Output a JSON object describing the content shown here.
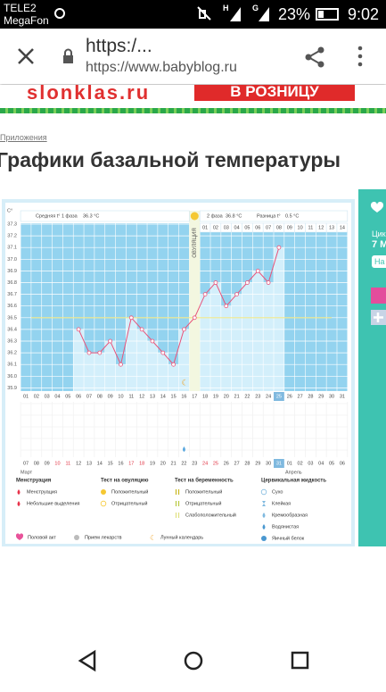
{
  "status_bar": {
    "carrier1": "TELE2",
    "carrier2": "MegaFon",
    "net1": "H",
    "net2": "G",
    "battery": "23%",
    "time": "9:02"
  },
  "browser": {
    "title": "https:/...",
    "url": "https://www.babyblog.ru"
  },
  "banner": {
    "left": "slonklas.ru",
    "right": "В РОЗНИЦУ"
  },
  "breadcrumb": "Приложения",
  "heading": "Графики базальной температуры",
  "side": {
    "cycle": "Цик",
    "date": "7 М",
    "button": "На"
  },
  "chart_data": {
    "type": "line",
    "unit_label": "С°",
    "phase1_label": "Средняя t° 1 фаза",
    "phase1_value": "36.3 °С",
    "phase2_label": "2 фаза",
    "phase2_value": "36.8 °С",
    "diff_label": "Разница t°",
    "diff_value": "0.5 °С",
    "ovulation_label": "ОВУЛЯЦИЯ",
    "categories": [
      "01",
      "02",
      "03",
      "04",
      "05",
      "06",
      "07",
      "08",
      "09",
      "10",
      "11",
      "12",
      "13",
      "14",
      "15",
      "16",
      "17",
      "18",
      "19",
      "20",
      "21",
      "22",
      "23",
      "24",
      "25",
      "26",
      "27",
      "28",
      "29",
      "30",
      "31"
    ],
    "phase2_days": [
      "01",
      "02",
      "03",
      "04",
      "05",
      "06",
      "07",
      "08",
      "09",
      "10",
      "11",
      "12",
      "13",
      "14"
    ],
    "dates": [
      "07",
      "08",
      "09",
      "10",
      "11",
      "12",
      "13",
      "14",
      "15",
      "16",
      "17",
      "18",
      "19",
      "20",
      "21",
      "22",
      "23",
      "24",
      "25",
      "26",
      "27",
      "28",
      "29",
      "30",
      "31",
      "01",
      "02",
      "03",
      "04",
      "05",
      "06"
    ],
    "months": [
      "Март",
      "Апрель"
    ],
    "values": [
      null,
      null,
      null,
      null,
      null,
      36.4,
      36.2,
      36.2,
      36.3,
      36.1,
      36.5,
      36.4,
      36.3,
      36.2,
      36.1,
      36.4,
      36.5,
      36.7,
      36.8,
      36.6,
      36.7,
      36.8,
      36.9,
      36.8,
      37.1,
      null,
      null,
      null,
      null,
      null,
      null
    ],
    "coverline": 36.5,
    "color": "#e8537a",
    "ylim": [
      35.9,
      37.3
    ],
    "yticks": [
      35.9,
      {
        "value": 36,
        "label": "36.0"
      },
      36.1,
      36.2,
      36.3,
      36.4,
      36.5,
      36.6,
      36.7,
      36.8,
      36.9,
      {
        "value": 37,
        "label": "37.0"
      },
      37.1,
      37.2,
      37.3
    ],
    "grid": true
  },
  "legend": {
    "groups": [
      {
        "title": "Менструация",
        "items": [
          "Менструация",
          "Небольшие выделения"
        ]
      },
      {
        "title": "Тест на овуляцию",
        "items": [
          "Положительный",
          "Отрицательный"
        ]
      },
      {
        "title": "Тест на беременность",
        "items": [
          "Положительный",
          "Отрицательный",
          "Слабоположительный"
        ]
      },
      {
        "title": "Цервикальная жидкость",
        "items": [
          "Сухо",
          "Клейкая",
          "Кремообразная",
          "Водянистая",
          "Яичный белок"
        ]
      }
    ],
    "extras": [
      "Половой акт",
      "Прием лекарств",
      "Лунный календарь"
    ]
  }
}
